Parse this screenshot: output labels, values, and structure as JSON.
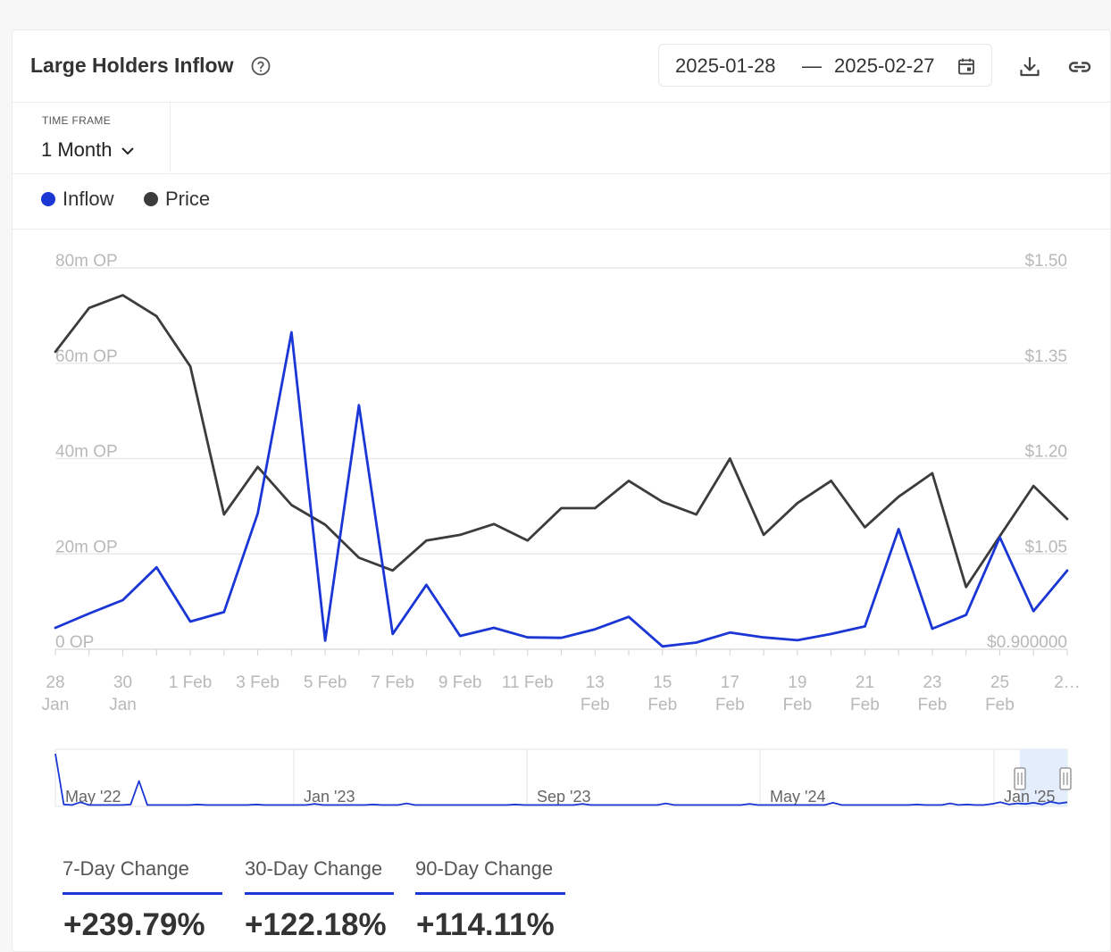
{
  "header": {
    "title": "Large Holders Inflow",
    "date_start": "2025-01-28",
    "date_separator": "—",
    "date_end": "2025-02-27"
  },
  "timeframe": {
    "label": "TIME FRAME",
    "value": "1 Month"
  },
  "legend": [
    {
      "label": "Inflow",
      "color": "#1a36d4"
    },
    {
      "label": "Price",
      "color": "#3c3c3c"
    }
  ],
  "chart_data": {
    "type": "line",
    "x": [
      "28 Jan",
      "29 Jan",
      "30 Jan",
      "31 Jan",
      "1 Feb",
      "2 Feb",
      "3 Feb",
      "4 Feb",
      "5 Feb",
      "6 Feb",
      "7 Feb",
      "8 Feb",
      "9 Feb",
      "10 Feb",
      "11 Feb",
      "12 Feb",
      "13 Feb",
      "14 Feb",
      "15 Feb",
      "16 Feb",
      "17 Feb",
      "18 Feb",
      "19 Feb",
      "20 Feb",
      "21 Feb",
      "22 Feb",
      "23 Feb",
      "24 Feb",
      "25 Feb",
      "26 Feb",
      "27 Feb"
    ],
    "tick_labels": [
      {
        "index": 0,
        "lines": [
          "28",
          "Jan"
        ]
      },
      {
        "index": 2,
        "lines": [
          "30",
          "Jan"
        ]
      },
      {
        "index": 4,
        "lines": [
          "1 Feb"
        ]
      },
      {
        "index": 6,
        "lines": [
          "3 Feb"
        ]
      },
      {
        "index": 8,
        "lines": [
          "5 Feb"
        ]
      },
      {
        "index": 10,
        "lines": [
          "7 Feb"
        ]
      },
      {
        "index": 12,
        "lines": [
          "9 Feb"
        ]
      },
      {
        "index": 14,
        "lines": [
          "11 Feb"
        ]
      },
      {
        "index": 16,
        "lines": [
          "13",
          "Feb"
        ]
      },
      {
        "index": 18,
        "lines": [
          "15",
          "Feb"
        ]
      },
      {
        "index": 20,
        "lines": [
          "17",
          "Feb"
        ]
      },
      {
        "index": 22,
        "lines": [
          "19",
          "Feb"
        ]
      },
      {
        "index": 24,
        "lines": [
          "21",
          "Feb"
        ]
      },
      {
        "index": 26,
        "lines": [
          "23",
          "Feb"
        ]
      },
      {
        "index": 28,
        "lines": [
          "25",
          "Feb"
        ]
      },
      {
        "index": 30,
        "lines": [
          "2…"
        ]
      }
    ],
    "series": [
      {
        "name": "Inflow",
        "axis": "left",
        "color": "#1a36d4",
        "values": [
          4.5,
          7.5,
          10.3,
          17.2,
          5.8,
          7.8,
          28.5,
          66.5,
          1.8,
          51.2,
          3.2,
          13.5,
          2.8,
          4.5,
          2.5,
          2.4,
          4.2,
          6.8,
          0.6,
          1.4,
          3.5,
          2.5,
          1.9,
          3.2,
          4.8,
          25.2,
          4.3,
          7.2,
          23.5,
          8.0,
          16.5
        ]
      },
      {
        "name": "Price",
        "axis": "right",
        "color": "#3c3c3c",
        "values": [
          1.368,
          1.437,
          1.457,
          1.424,
          1.345,
          1.112,
          1.187,
          1.127,
          1.096,
          1.044,
          1.024,
          1.071,
          1.08,
          1.097,
          1.071,
          1.122,
          1.122,
          1.165,
          1.132,
          1.112,
          1.2,
          1.08,
          1.13,
          1.165,
          1.092,
          1.14,
          1.177,
          0.998,
          1.078,
          1.157,
          1.105
        ]
      }
    ],
    "y_left": {
      "min": 0,
      "max": 80,
      "ticks": [
        0,
        20,
        40,
        60,
        80
      ],
      "tick_labels": [
        "0 OP",
        "20m OP",
        "40m OP",
        "60m OP",
        "80m OP"
      ]
    },
    "y_right": {
      "min": 0.9,
      "max": 1.5,
      "ticks": [
        0.9,
        1.05,
        1.2,
        1.35,
        1.5
      ],
      "tick_labels": [
        "$0.900000",
        "$1.05",
        "$1.20",
        "$1.35",
        "$1.50"
      ]
    },
    "grid": true,
    "legend_position": "top-left"
  },
  "navigator": {
    "labels": [
      "May '22",
      "Jan '23",
      "Sep '23",
      "May '24",
      "Jan '25"
    ],
    "series_values": [
      9.5,
      0.2,
      0.1,
      0.6,
      0.1,
      0.1,
      0.1,
      0.1,
      0.1,
      0.2,
      4.5,
      0.1,
      0.1,
      0.1,
      0.1,
      0.1,
      0.1,
      0.2,
      0.1,
      0.1,
      0.1,
      0.1,
      0.1,
      0.1,
      0.2,
      0.1,
      0.1,
      0.1,
      0.1,
      0.1,
      0.1,
      0.3,
      0.1,
      0.1,
      0.1,
      0.1,
      0.1,
      0.1,
      0.2,
      0.1,
      0.1,
      0.1,
      0.4,
      0.1,
      0.1,
      0.1,
      0.1,
      0.1,
      0.1,
      0.1,
      0.1,
      0.1,
      0.1,
      0.1,
      0.1,
      0.2,
      0.1,
      0.1,
      0.1,
      0.1,
      0.1,
      0.1,
      0.1,
      0.3,
      0.1,
      0.1,
      0.1,
      0.1,
      0.1,
      0.1,
      0.1,
      0.1,
      0.1,
      0.4,
      0.1,
      0.1,
      0.1,
      0.1,
      0.1,
      0.1,
      0.1,
      0.1,
      0.1,
      0.3,
      0.1,
      0.1,
      0.1,
      0.1,
      0.1,
      0.1,
      0.1,
      0.1,
      0.1,
      0.5,
      0.1,
      0.1,
      0.1,
      0.1,
      0.1,
      0.1,
      0.1,
      0.1,
      0.1,
      0.2,
      0.1,
      0.1,
      0.1,
      0.4,
      0.1,
      0.2,
      0.1,
      0.1,
      0.3,
      0.6,
      0.2,
      0.4,
      0.3,
      0.5,
      0.2,
      0.7,
      0.4,
      0.6
    ]
  },
  "changes": [
    {
      "label": "7-Day Change",
      "value": "+239.79%"
    },
    {
      "label": "30-Day Change",
      "value": "+122.18%"
    },
    {
      "label": "90-Day Change",
      "value": "+114.11%"
    }
  ]
}
